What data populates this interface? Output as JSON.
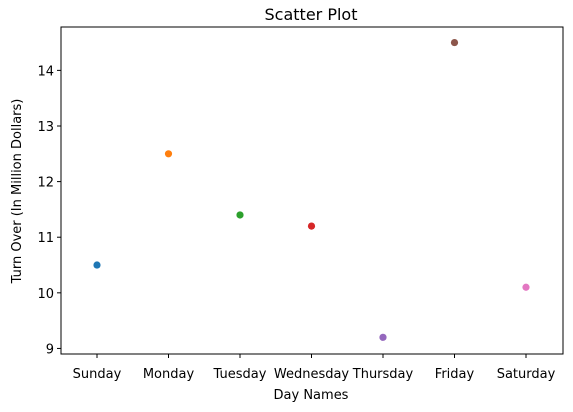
{
  "chart_data": {
    "type": "scatter",
    "title": "Scatter Plot",
    "xlabel": "Day Names",
    "ylabel": "Turn Over (In Million Dollars)",
    "categories": [
      "Sunday",
      "Monday",
      "Tuesday",
      "Wednesday",
      "Thursday",
      "Friday",
      "Saturday"
    ],
    "values": [
      10.5,
      12.5,
      11.4,
      11.2,
      9.2,
      14.5,
      10.1
    ],
    "point_colors": [
      "#1f77b4",
      "#ff7f0e",
      "#2ca02c",
      "#d62728",
      "#9467bd",
      "#8c564b",
      "#e377c2"
    ],
    "yticks": [
      9,
      10,
      11,
      12,
      13,
      14
    ],
    "ylim": [
      8.9,
      14.78
    ],
    "grid": false,
    "legend": "none"
  }
}
